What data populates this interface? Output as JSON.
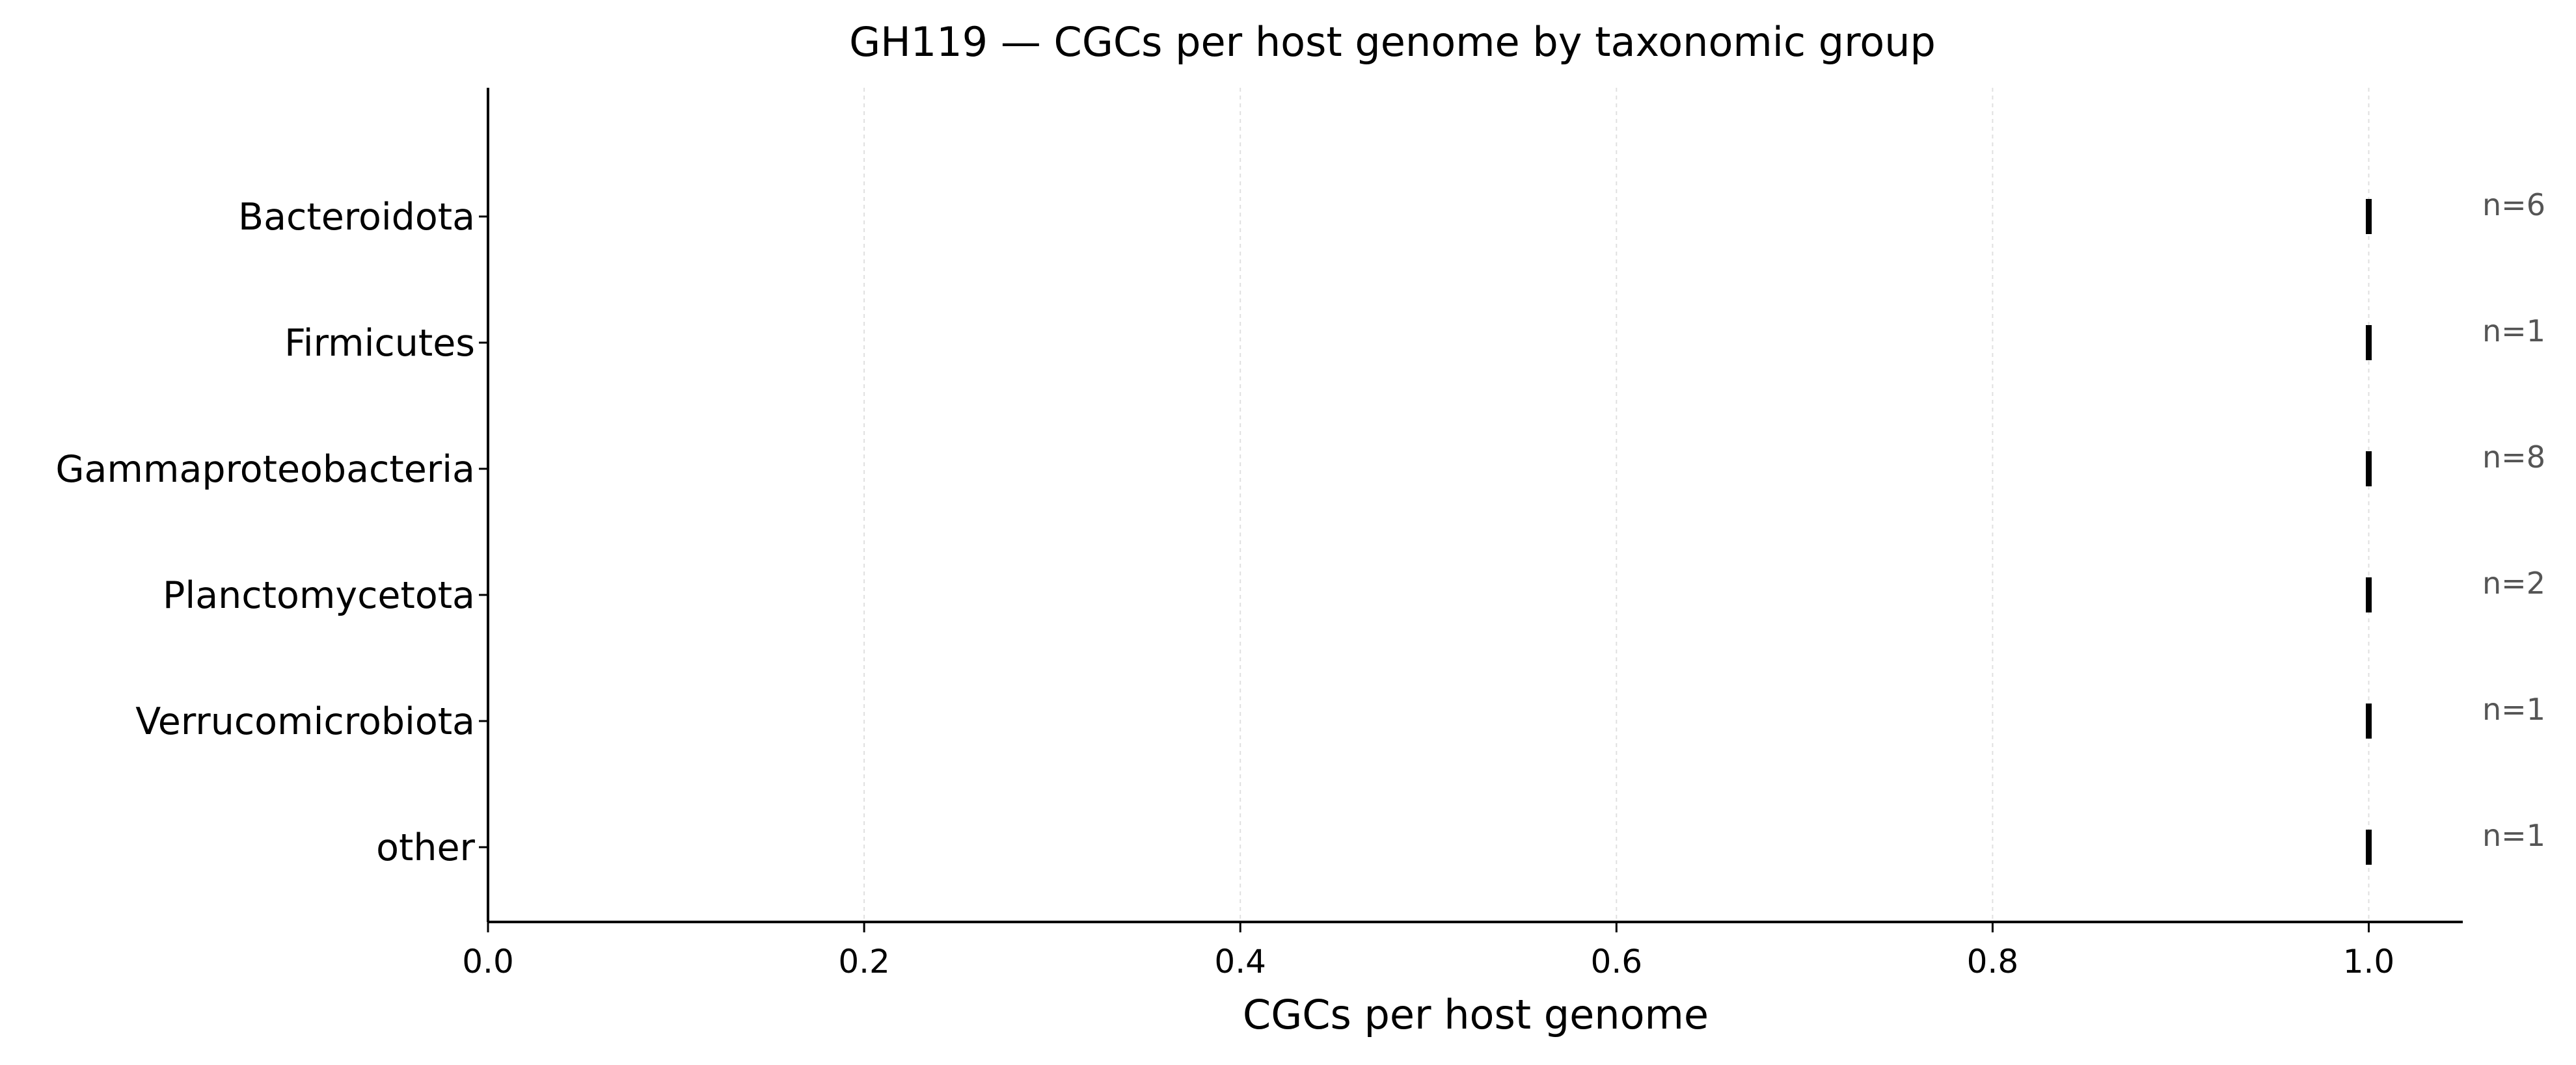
{
  "chart_data": {
    "type": "scatter",
    "marker": "vertical-tick",
    "title": "GH119 — CGCs per host genome by taxonomic group",
    "xlabel": "CGCs per host genome",
    "ylabel": "",
    "xlim": [
      0.0,
      1.05
    ],
    "xticks": [
      0.0,
      0.2,
      0.4,
      0.6,
      0.8,
      1.0
    ],
    "xtick_labels": [
      "0.0",
      "0.2",
      "0.4",
      "0.6",
      "0.8",
      "1.0"
    ],
    "grid": "vertical, dotted, light",
    "categories": [
      "Bacteroidota",
      "Firmicutes",
      "Gammaproteobacteria",
      "Planctomycetota",
      "Verrucomicrobiota",
      "other"
    ],
    "values": [
      1.0,
      1.0,
      1.0,
      1.0,
      1.0,
      1.0
    ],
    "counts": [
      "n=6",
      "n=1",
      "n=8",
      "n=2",
      "n=1",
      "n=1"
    ],
    "colors": {
      "marker": "#000000",
      "axis": "#000000",
      "grid": "#e0e0e0",
      "count_label": "#555555"
    }
  }
}
